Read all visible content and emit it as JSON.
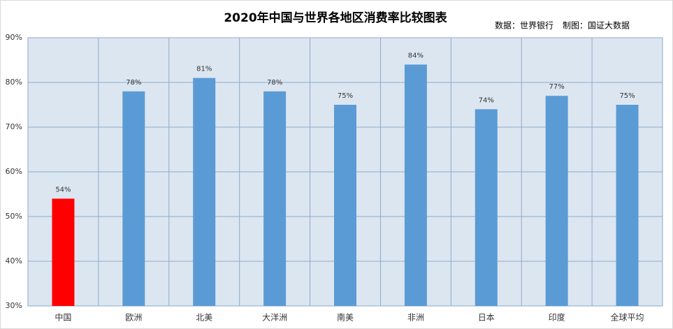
{
  "chart_data": {
    "type": "bar",
    "title": "2020年中国与世界各地区消费率比较图表",
    "annotations": [
      "数据：世界银行",
      "制图：国证大数据"
    ],
    "categories": [
      "中国",
      "欧洲",
      "北美",
      "大洋洲",
      "南美",
      "非洲",
      "日本",
      "印度",
      "全球平均"
    ],
    "values": [
      54,
      78,
      81,
      78,
      75,
      84,
      74,
      77,
      75
    ],
    "value_labels": [
      "54%",
      "78%",
      "81%",
      "78%",
      "75%",
      "84%",
      "74%",
      "77%",
      "75%"
    ],
    "colors": [
      "#ff0000",
      "#5b9bd5",
      "#5b9bd5",
      "#5b9bd5",
      "#5b9bd5",
      "#5b9bd5",
      "#5b9bd5",
      "#5b9bd5",
      "#5b9bd5"
    ],
    "ylim": [
      30,
      90
    ],
    "yticks": [
      {
        "value": 30,
        "label": "30%"
      },
      {
        "value": 40,
        "label": "40%"
      },
      {
        "value": 50,
        "label": "50%"
      },
      {
        "value": 60,
        "label": "60%"
      },
      {
        "value": 70,
        "label": "70%"
      },
      {
        "value": 80,
        "label": "80%"
      },
      {
        "value": 90,
        "label": "90%"
      }
    ],
    "grid": true
  }
}
